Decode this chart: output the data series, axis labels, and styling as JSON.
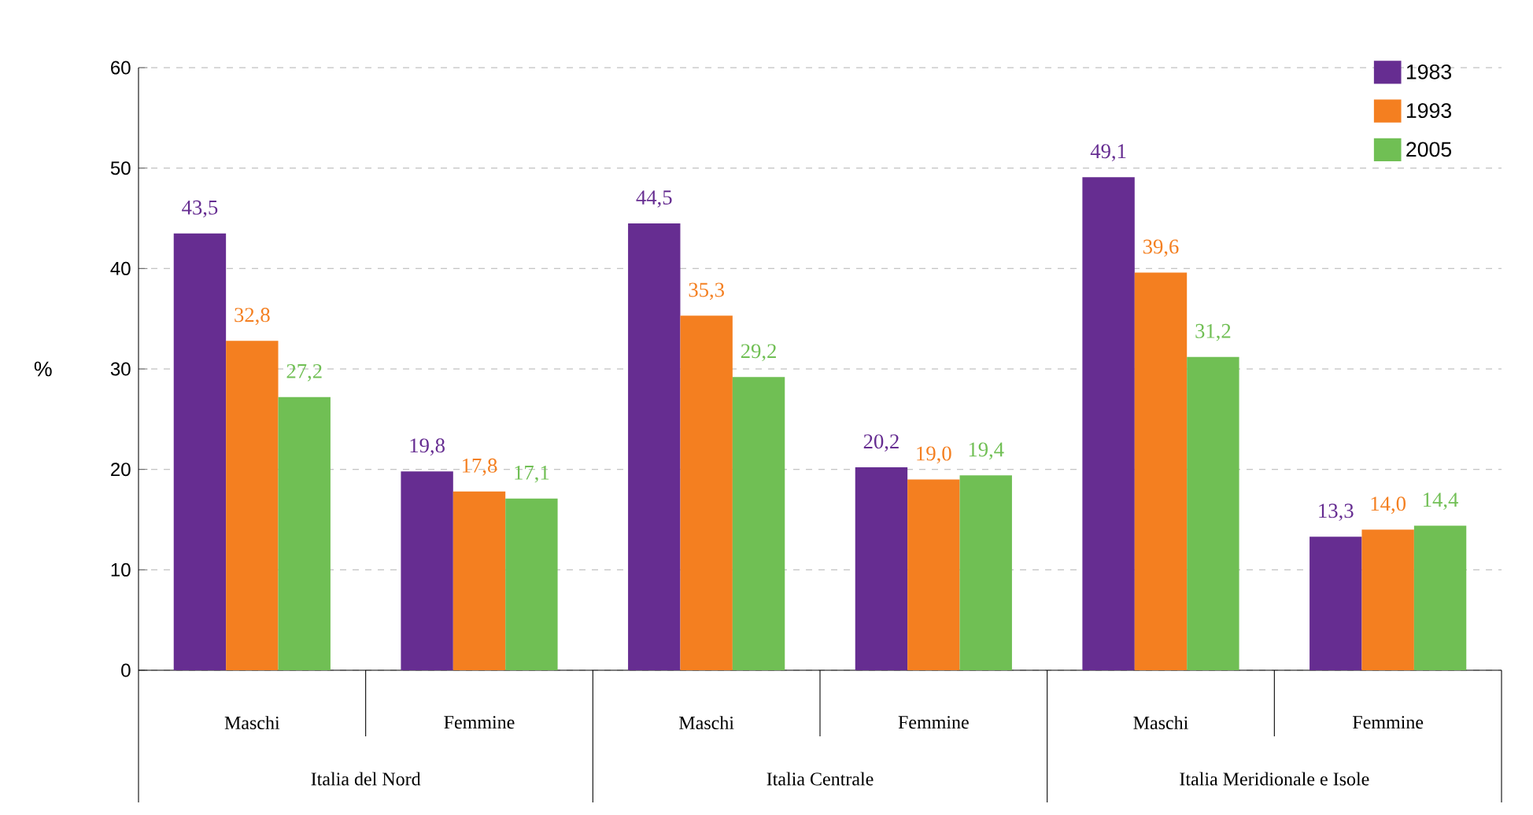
{
  "chart_data": {
    "type": "bar",
    "ylabel": "%",
    "categories": [
      "Maschi",
      "Femmine",
      "Maschi",
      "Femmine",
      "Maschi",
      "Femmine"
    ],
    "annotations": [
      "Italia del Nord",
      "Italia Centrale",
      "Italia Meridionale e Isole"
    ],
    "series": [
      {
        "name": "1983",
        "color": "#662d91",
        "values": [
          43.5,
          19.8,
          44.5,
          20.2,
          49.1,
          13.3
        ],
        "value_labels": [
          "43,5",
          "19,8",
          "44,5",
          "20,2",
          "49,1",
          "13,3"
        ]
      },
      {
        "name": "1993",
        "color": "#f47f20",
        "values": [
          32.8,
          17.8,
          35.3,
          19.0,
          39.6,
          14.0
        ],
        "value_labels": [
          "32,8",
          "17,8",
          "35,3",
          "19,0",
          "39,6",
          "14,0"
        ]
      },
      {
        "name": "2005",
        "color": "#70bf54",
        "values": [
          27.2,
          17.1,
          29.2,
          19.4,
          31.2,
          14.4
        ],
        "value_labels": [
          "27,2",
          "17,1",
          "29,2",
          "19,4",
          "31,2",
          "14,4"
        ]
      }
    ],
    "ylim": [
      0,
      60
    ],
    "yticks": [
      0,
      10,
      20,
      30,
      40,
      50,
      60
    ],
    "grid": "y",
    "legend": "top right"
  }
}
